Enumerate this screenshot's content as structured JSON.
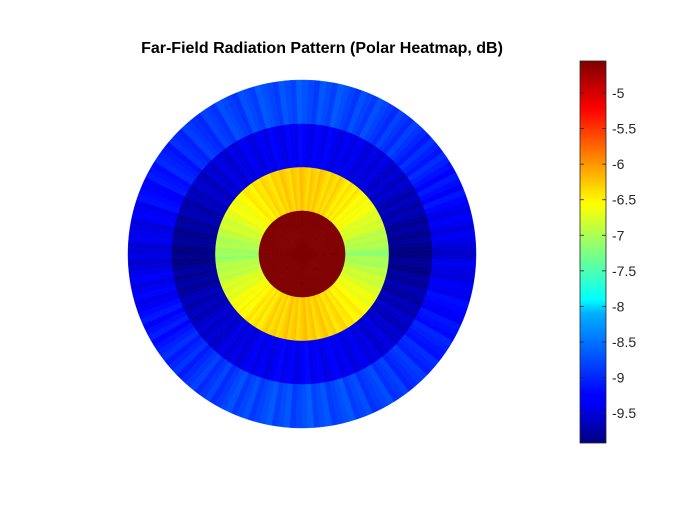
{
  "chart_data": {
    "type": "heatmap",
    "subtype": "polar",
    "title": "Far-Field Radiation Pattern (Polar Heatmap, dB)",
    "colormap": "jet",
    "clim": [
      -9.92,
      -4.55
    ],
    "colorbar": {
      "location": "right",
      "ticks": [
        -5,
        -5.5,
        -6,
        -6.5,
        -7,
        -7.5,
        -8,
        -8.5,
        -9,
        -9.5
      ],
      "tick_labels": [
        "-5",
        "-5.5",
        "-6",
        "-6.5",
        "-7",
        "-7.5",
        "-8",
        "-8.5",
        "-9",
        "-9.5"
      ]
    },
    "rings": [
      {
        "r_inner": 0.0,
        "r_outer": 0.25,
        "value_equator": -4.55,
        "value_pole": -4.55
      },
      {
        "r_inner": 0.25,
        "r_outer": 0.5,
        "value_equator": -7.1,
        "value_pole": -6.3
      },
      {
        "r_inner": 0.5,
        "r_outer": 0.75,
        "value_equator": -9.9,
        "value_pole": -9.3
      },
      {
        "r_inner": 0.75,
        "r_outer": 1.0,
        "value_equator": -9.45,
        "value_pole": -8.85
      }
    ],
    "angular_sectors": 180,
    "grid": false
  }
}
